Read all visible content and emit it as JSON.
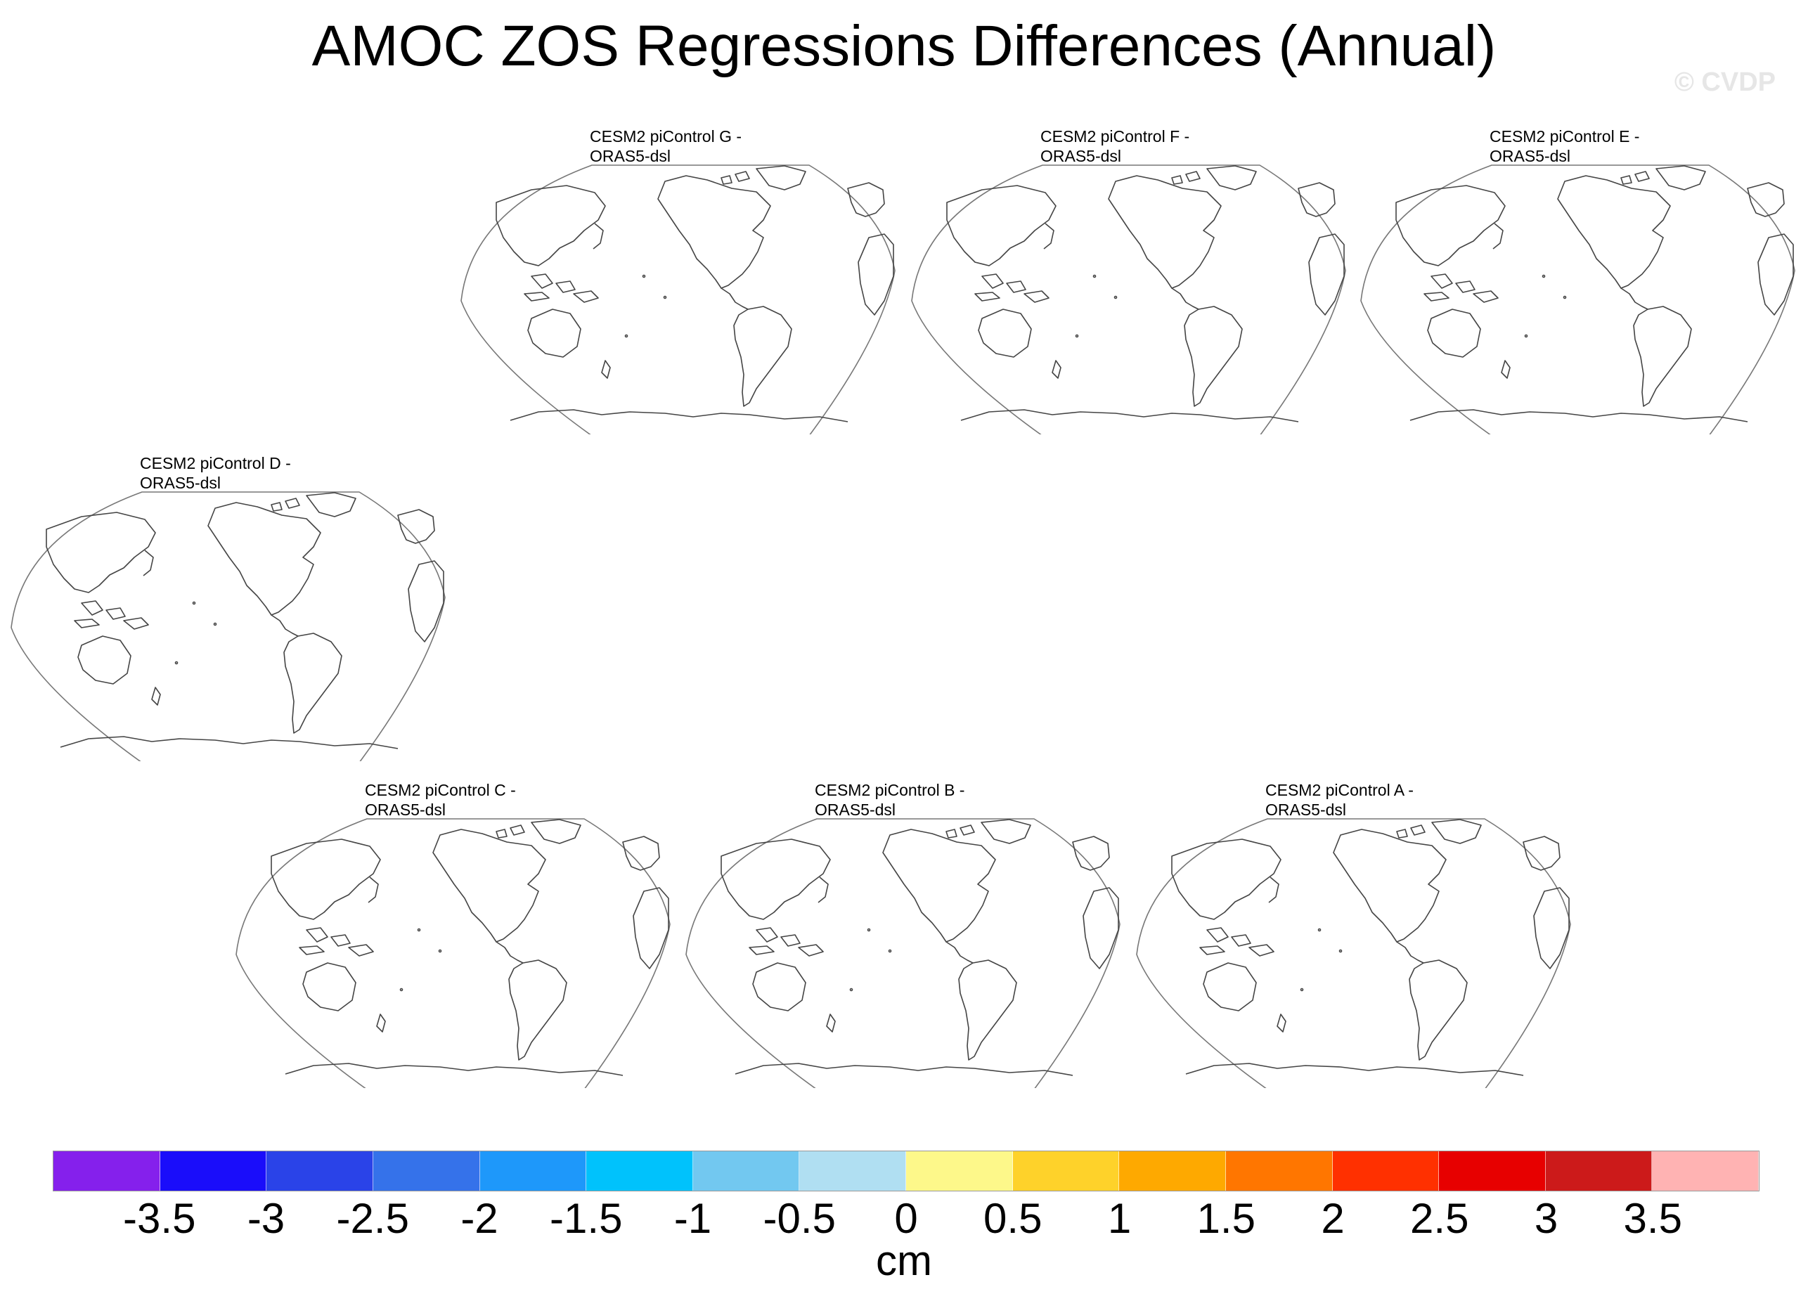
{
  "title": "AMOC ZOS Regressions Differences (Annual)",
  "watermark": "© CVDP",
  "panels": [
    {
      "id": "G",
      "line1": "CESM2 piControl G -",
      "line2": "ORAS5-dsl"
    },
    {
      "id": "F",
      "line1": "CESM2 piControl F -",
      "line2": "ORAS5-dsl"
    },
    {
      "id": "E",
      "line1": "CESM2 piControl E -",
      "line2": "ORAS5-dsl"
    },
    {
      "id": "D",
      "line1": "CESM2 piControl D -",
      "line2": "ORAS5-dsl"
    },
    {
      "id": "C",
      "line1": "CESM2 piControl C -",
      "line2": "ORAS5-dsl"
    },
    {
      "id": "B",
      "line1": "CESM2 piControl B -",
      "line2": "ORAS5-dsl"
    },
    {
      "id": "A",
      "line1": "CESM2 piControl A -",
      "line2": "ORAS5-dsl"
    }
  ],
  "colorbar": {
    "units": "cm",
    "ticks": [
      "-3.5",
      "-3",
      "-2.5",
      "-2",
      "-1.5",
      "-1",
      "-0.5",
      "0",
      "0.5",
      "1",
      "1.5",
      "2",
      "2.5",
      "3",
      "3.5"
    ],
    "colors": [
      "#8520ec",
      "#1a0dfa",
      "#2a43e8",
      "#3572ea",
      "#1e98fa",
      "#00c2fc",
      "#72c8f0",
      "#b0dff2",
      "#fdf88a",
      "#fed22a",
      "#fea900",
      "#ff7600",
      "#ff3000",
      "#e70000",
      "#cc1a1a",
      "#ffb3b3"
    ]
  }
}
